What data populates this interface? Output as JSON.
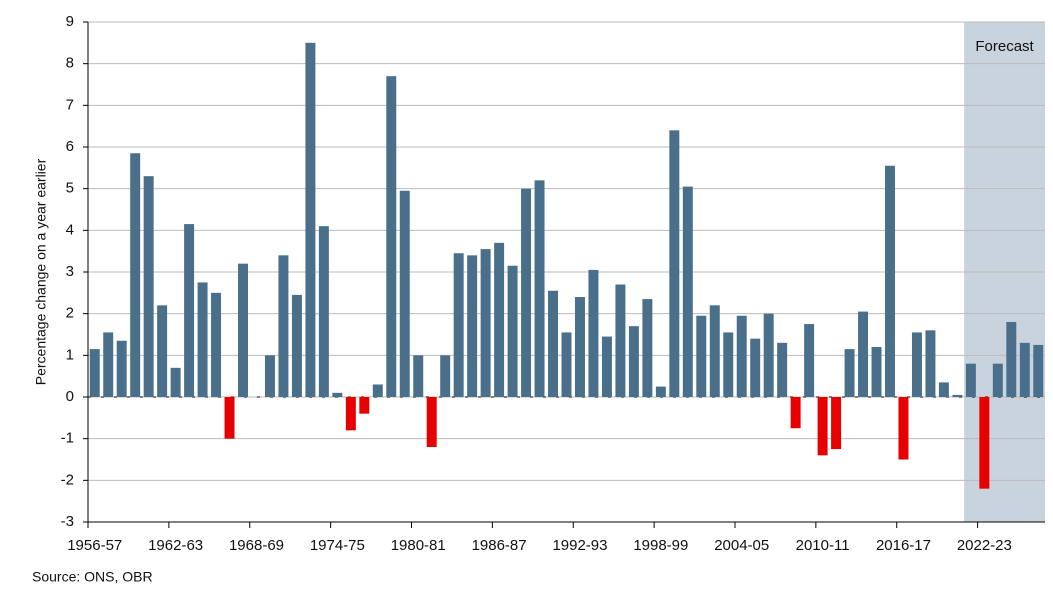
{
  "chart_data": {
    "type": "bar",
    "y_label": "Percentage change on a year earlier",
    "source": "Source: ONS, OBR",
    "categories": [
      "1956-57",
      null,
      null,
      null,
      null,
      null,
      "1962-63",
      null,
      null,
      null,
      null,
      null,
      "1968-69",
      null,
      null,
      null,
      null,
      null,
      "1974-75",
      null,
      null,
      null,
      null,
      null,
      "1980-81",
      null,
      null,
      null,
      null,
      null,
      "1986-87",
      null,
      null,
      null,
      null,
      null,
      "1992-93",
      null,
      null,
      null,
      null,
      null,
      "1998-99",
      null,
      null,
      null,
      null,
      null,
      "2004-05",
      null,
      null,
      null,
      null,
      null,
      "2010-11",
      null,
      null,
      null,
      null,
      null,
      "2016-17",
      null,
      null,
      null,
      null,
      null,
      "2022-23",
      null,
      null,
      null,
      null
    ],
    "values": [
      1.15,
      1.55,
      1.35,
      5.85,
      5.3,
      2.2,
      0.7,
      4.15,
      2.75,
      2.5,
      -1.0,
      3.2,
      0,
      1.0,
      3.4,
      2.45,
      8.5,
      4.1,
      0.1,
      -0.8,
      -0.4,
      0.3,
      7.7,
      4.95,
      1.0,
      -1.2,
      1.0,
      3.45,
      3.4,
      3.55,
      3.7,
      3.15,
      5.0,
      5.2,
      2.55,
      1.55,
      2.4,
      3.05,
      1.45,
      2.7,
      1.7,
      2.35,
      0.25,
      6.4,
      5.05,
      1.95,
      2.2,
      1.55,
      1.95,
      1.4,
      2.0,
      1.3,
      -0.75,
      1.75,
      -1.4,
      -1.25,
      1.15,
      2.05,
      1.2,
      5.55,
      -1.5,
      1.55,
      1.6,
      0.35,
      0.05,
      0.8,
      -2.2,
      0.8,
      1.8,
      1.3,
      1.25
    ],
    "color": "#4a6f8a",
    "negative_color": "#e60000",
    "forecast": {
      "label": "Forecast",
      "start_index": 65,
      "color": "#c9d3de"
    },
    "ylim": [
      -3,
      9
    ],
    "yticks": [
      -3,
      -2,
      -1,
      0,
      1,
      2,
      3,
      4,
      5,
      6,
      7,
      8,
      9
    ],
    "grid": true
  }
}
